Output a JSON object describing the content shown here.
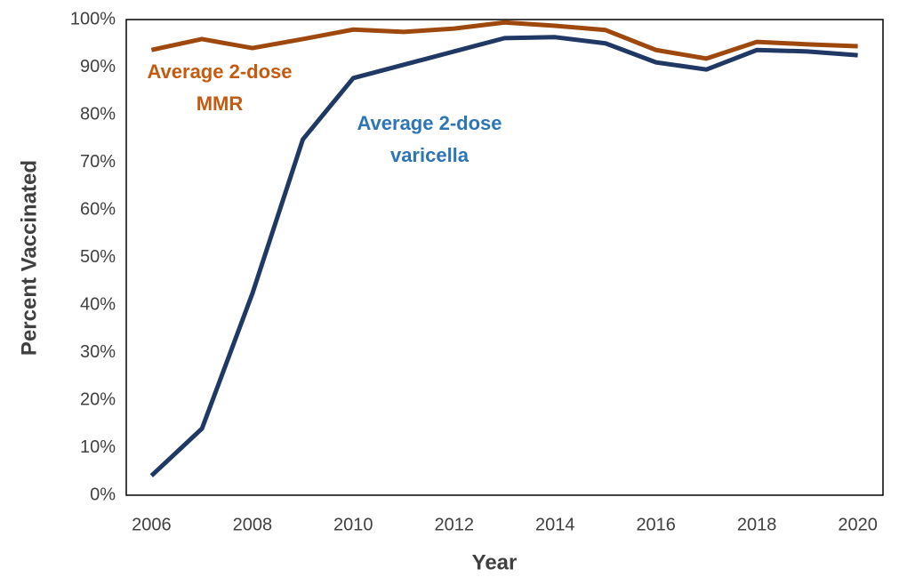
{
  "chart_data": {
    "type": "line",
    "y_label": "Percent Vaccinated",
    "x_label": "Year",
    "x": [
      2006,
      2007,
      2008,
      2009,
      2010,
      2011,
      2012,
      2013,
      2014,
      2015,
      2016,
      2017,
      2018,
      2019,
      2020
    ],
    "xlim": [
      2005.5,
      2020.5
    ],
    "xticks": [
      2006,
      2008,
      2010,
      2012,
      2014,
      2016,
      2018,
      2020
    ],
    "ylim": [
      0,
      100
    ],
    "yticks": [
      {
        "value": 0,
        "label": "0%"
      },
      {
        "value": 10,
        "label": "10%"
      },
      {
        "value": 20,
        "label": "20%"
      },
      {
        "value": 30,
        "label": "30%"
      },
      {
        "value": 40,
        "label": "40%"
      },
      {
        "value": 50,
        "label": "50%"
      },
      {
        "value": 60,
        "label": "60%"
      },
      {
        "value": 70,
        "label": "70%"
      },
      {
        "value": 80,
        "label": "80%"
      },
      {
        "value": 90,
        "label": "90%"
      },
      {
        "value": 100,
        "label": "100%"
      }
    ],
    "grid": false,
    "series": [
      {
        "color": "#9e480e",
        "values": [
          93.6,
          95.9,
          94.0,
          95.9,
          97.9,
          97.4,
          98.1,
          99.4,
          98.7,
          97.8,
          93.6,
          91.8,
          95.3,
          94.8,
          94.4
        ]
      },
      {
        "color": "#203864",
        "values": [
          4.1,
          14.0,
          42.4,
          74.8,
          87.7,
          90.5,
          93.3,
          96.1,
          96.3,
          95.0,
          91.0,
          89.5,
          93.6,
          93.3,
          92.5
        ]
      }
    ],
    "annotations": [
      {
        "lines": [
          "Average 2-dose",
          "MMR"
        ],
        "color": "#c55a11"
      },
      {
        "lines": [
          "Average 2-dose",
          "varicella"
        ],
        "color": "#2e75b6"
      }
    ]
  }
}
